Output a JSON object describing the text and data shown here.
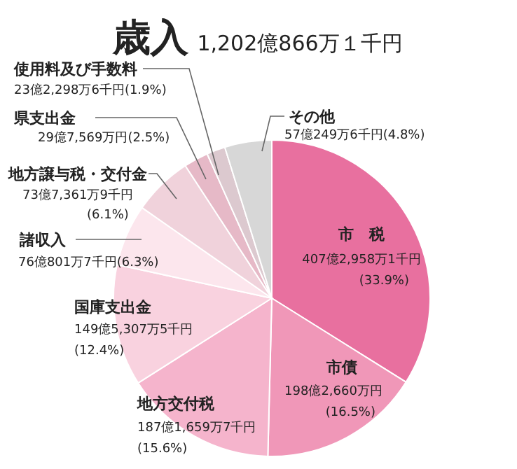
{
  "chart_data": {
    "type": "pie",
    "title": "歳入",
    "subtitle": "1,202億866万１千円",
    "categories": [
      "市　税",
      "市債",
      "地方交付税",
      "国庫支出金",
      "諸収入",
      "地方譲与税・交付金",
      "県支出金",
      "使用料及び手数料",
      "その他"
    ],
    "values": [
      33.9,
      16.5,
      15.6,
      12.4,
      6.3,
      6.1,
      2.5,
      1.9,
      4.8
    ],
    "colors": [
      "#e8709f",
      "#f097b8",
      "#f5b4cc",
      "#f9d2df",
      "#fce6ed",
      "#f0d2db",
      "#e6b9c7",
      "#dcc9cf",
      "#d7d7d7"
    ],
    "value_labels": [
      "407億2,958万1千円\n(33.9%)",
      "198億2,660万円\n(16.5%)",
      "187億1,659万7千円\n(15.6%)",
      "149億5,307万5千円\n(12.4%)",
      "76億801万7千円(6.3%)",
      "73億7,361万9千円\n(6.1%)",
      "29億7,569万円(2.5%)",
      "23億2,298万6千円(1.9%)",
      "57億249万6千円(4.8%)"
    ]
  }
}
